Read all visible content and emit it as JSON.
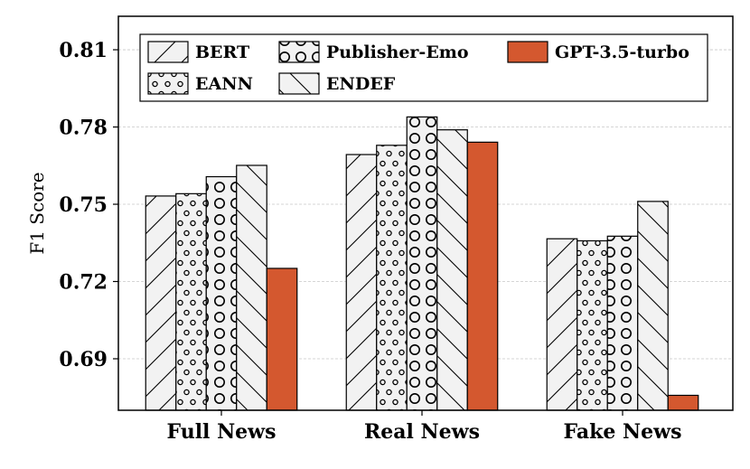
{
  "chart_data": {
    "type": "bar",
    "ylabel": "F1 Score",
    "categories": [
      "Full News",
      "Real News",
      "Fake News"
    ],
    "yticks": [
      0.69,
      0.72,
      0.75,
      0.78,
      0.81
    ],
    "ytick_labels": [
      "0.69",
      "0.72",
      "0.75",
      "0.78",
      "0.81"
    ],
    "ylim": [
      0.67,
      0.823
    ],
    "grid": "horizontal-dashed",
    "legend_position": "top",
    "series": [
      {
        "name": "BERT",
        "pattern": "forward-hatch",
        "color": "#f2f2f2",
        "values": [
          0.7532,
          0.7693,
          0.7366
        ]
      },
      {
        "name": "EANN",
        "pattern": "small-circles",
        "color": "#f2f2f2",
        "values": [
          0.7541,
          0.7729,
          0.7358
        ]
      },
      {
        "name": "Publisher-Emo",
        "pattern": "large-circles",
        "color": "#f2f2f2",
        "values": [
          0.7607,
          0.7839,
          0.7376
        ]
      },
      {
        "name": "ENDEF",
        "pattern": "back-hatch",
        "color": "#f2f2f2",
        "values": [
          0.7651,
          0.7789,
          0.7511
        ]
      },
      {
        "name": "GPT-3.5-turbo",
        "pattern": "solid",
        "color": "#d4582f",
        "values": [
          0.7251,
          0.7741,
          0.6758
        ]
      }
    ]
  }
}
